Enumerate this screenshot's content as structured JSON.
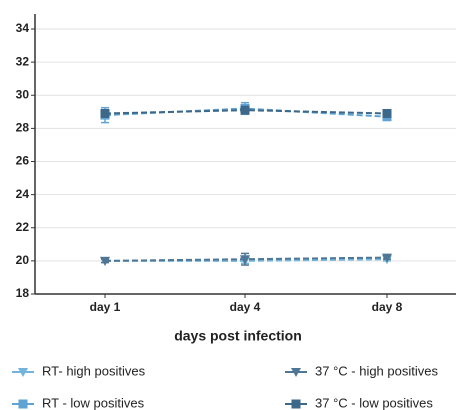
{
  "chart_data": {
    "type": "line",
    "xlabel": "days post infection",
    "categories": [
      "day 1",
      "day 4",
      "day 8"
    ],
    "ylim": [
      18,
      34
    ],
    "yticks": [
      18,
      20,
      22,
      24,
      26,
      28,
      30,
      32,
      34
    ],
    "grid": true,
    "legend": "bottom",
    "series": [
      {
        "name": "RT- high positives",
        "color": "#74b4dc",
        "marker": "triangle-down",
        "values": [
          20.0,
          20.0,
          20.1
        ],
        "errors": [
          0.1,
          0.15,
          0.1
        ]
      },
      {
        "name": "RT - low positives",
        "color": "#5ea3d4",
        "marker": "square",
        "values": [
          28.8,
          29.2,
          28.7
        ],
        "errors": [
          0.45,
          0.35,
          0.2
        ]
      },
      {
        "name": "37 °C - high positives",
        "color": "#4f7694",
        "marker": "triangle-down",
        "values": [
          20.0,
          20.1,
          20.2
        ],
        "errors": [
          0.1,
          0.35,
          0.1
        ]
      },
      {
        "name": "37 °C - low positives",
        "color": "#3e6889",
        "marker": "square",
        "values": [
          28.9,
          29.1,
          28.9
        ],
        "errors": [
          0.15,
          0.2,
          0.15
        ]
      }
    ]
  }
}
